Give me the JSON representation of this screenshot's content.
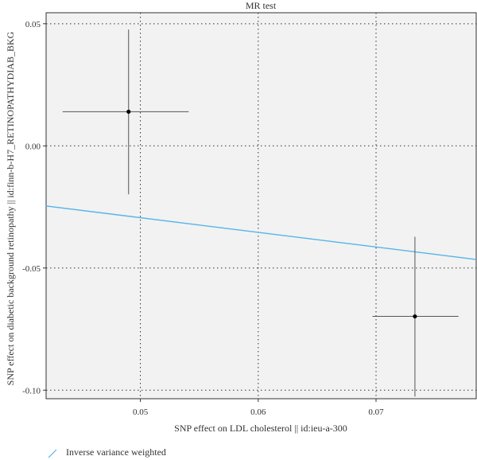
{
  "chart_data": {
    "type": "scatter",
    "title": "MR test",
    "xlabel": "SNP effect on LDL cholesterol || id:ieu-a-300",
    "ylabel": "SNP effect on diabetic background retinopathy || id:finn-b-H7_RETINOPATHYDIAB_BKG",
    "xlim": [
      0.042,
      0.0785
    ],
    "ylim": [
      -0.1035,
      0.0545
    ],
    "x_ticks": [
      0.05,
      0.06,
      0.07
    ],
    "x_tick_labels": [
      "0.05",
      "0.06",
      "0.07"
    ],
    "y_ticks": [
      0.05,
      0.0,
      -0.05,
      -0.1
    ],
    "y_tick_labels": [
      "0.05",
      "0.00",
      "-0.05",
      "-0.10"
    ],
    "grid": true,
    "points": [
      {
        "x": 0.049,
        "y": 0.014,
        "x_lo": 0.0434,
        "x_hi": 0.0541,
        "y_lo": -0.0198,
        "y_hi": 0.0476
      },
      {
        "x": 0.0733,
        "y": -0.0698,
        "x_lo": 0.0697,
        "x_hi": 0.077,
        "y_lo": -0.1026,
        "y_hi": -0.0372
      }
    ],
    "lines": [
      {
        "name": "Inverse variance weighted",
        "x": [
          0.042,
          0.0785
        ],
        "y": [
          -0.0246,
          -0.0465
        ],
        "color": "#56B4E9"
      }
    ],
    "legend": {
      "position": "bottom-left",
      "entries": [
        {
          "label": "Inverse variance weighted",
          "color": "#56B4E9"
        }
      ]
    }
  }
}
